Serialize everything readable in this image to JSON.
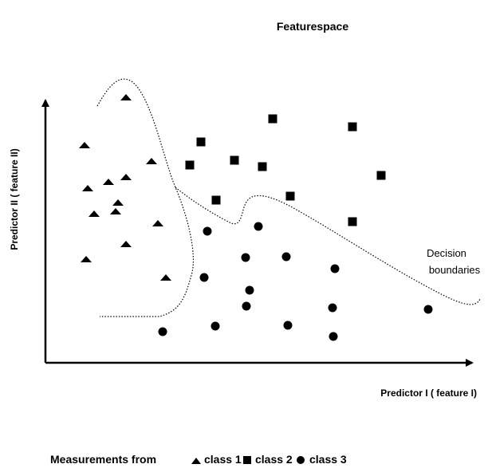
{
  "header": {
    "title": "Featurespace"
  },
  "axes": {
    "y_label": "Predictor II ( feature II)",
    "x_label": "Predictor I ( feature I)"
  },
  "annotation": {
    "lines": [
      "Decision",
      "boundaries"
    ]
  },
  "legend": {
    "intro": "Measurements from",
    "items": [
      "class 1",
      "class 2",
      "class 3"
    ]
  }
}
